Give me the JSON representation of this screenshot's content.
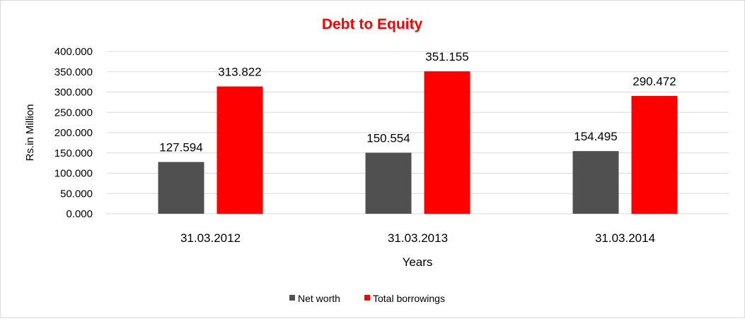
{
  "chart_data": {
    "type": "bar",
    "title": "Debt to Equity",
    "xlabel": "Years",
    "ylabel": "Rs.in Million",
    "categories": [
      "31.03.2012",
      "31.03.2013",
      "31.03.2014"
    ],
    "series": [
      {
        "name": "Net worth",
        "values": [
          127.594,
          150.554,
          154.495
        ],
        "color": "#505050"
      },
      {
        "name": "Total borrowings",
        "values": [
          313.822,
          351.155,
          290.472
        ],
        "color": "#ff0000"
      }
    ],
    "ylim": [
      0,
      400
    ],
    "yticks": [
      "0.000",
      "50.000",
      "100.000",
      "150.000",
      "200.000",
      "250.000",
      "300.000",
      "350.000",
      "400.000"
    ],
    "data_labels": [
      [
        "127.594",
        "150.554",
        "154.495"
      ],
      [
        "313.822",
        "351.155",
        "290.472"
      ]
    ],
    "grid": true,
    "legend_position": "bottom",
    "title_color": "#ff0000",
    "gridline_color": "#d9d9d9"
  }
}
